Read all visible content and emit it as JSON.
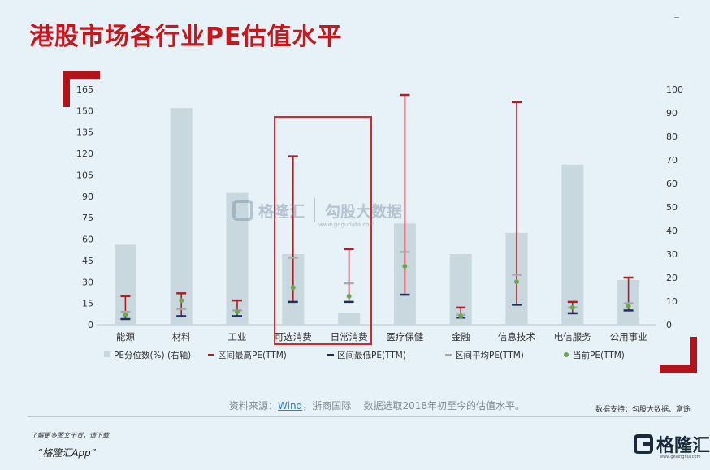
{
  "title": "港股市场各行业PE估值水平",
  "chart_data": {
    "type": "bar",
    "categories": [
      "能源",
      "材料",
      "工业",
      "可选消费",
      "日常消费",
      "医疗保健",
      "金融",
      "信息技术",
      "电信服务",
      "公用事业"
    ],
    "left_axis": {
      "ticks": [
        0,
        15,
        30,
        45,
        60,
        75,
        90,
        105,
        120,
        135,
        150,
        165
      ],
      "ylim": [
        0,
        165
      ]
    },
    "right_axis": {
      "ticks": [
        0,
        10,
        20,
        30,
        40,
        50,
        60,
        70,
        80,
        90,
        100
      ],
      "ylim": [
        0,
        100
      ]
    },
    "series": [
      {
        "name": "PE分位数(%) (右轴)",
        "kind": "bar",
        "axis": "right",
        "color": "#c9d7df",
        "values": [
          34,
          92,
          56,
          30,
          5,
          43,
          30,
          39,
          68,
          19
        ]
      },
      {
        "name": "区间最高PE(TTM)",
        "kind": "range_top",
        "axis": "left",
        "color": "#b01e24",
        "values": [
          20,
          22,
          17,
          118,
          53,
          161,
          12,
          156,
          16,
          33
        ]
      },
      {
        "name": "区间最低PE(TTM)",
        "kind": "range_bottom",
        "axis": "left",
        "color": "#1f2f5c",
        "values": [
          4,
          6,
          6,
          16,
          16,
          21,
          5,
          14,
          8,
          10
        ]
      },
      {
        "name": "区间平均PE(TTM)",
        "kind": "dash",
        "axis": "left",
        "color": "#a9a9a9",
        "values": [
          9,
          11,
          10,
          47,
          29,
          51,
          7,
          35,
          12,
          15
        ]
      },
      {
        "name": "当前PE(TTM)",
        "kind": "dot",
        "axis": "left",
        "color": "#6aa84f",
        "values": [
          7,
          17,
          9,
          26,
          20,
          41,
          6,
          30,
          12,
          13
        ]
      }
    ],
    "highlight_categories": [
      "可选消费",
      "日常消费"
    ]
  },
  "watermark": {
    "brand": "格隆汇",
    "partner": "勾股大数据",
    "url": "www.gogudata.com"
  },
  "source": {
    "prefix": "资料来源：",
    "wind": "Wind",
    "rest": "，浙商国际",
    "note": "数据选取2018年初至今的估值水平。"
  },
  "support": "数据支持：勾股大数据、富途",
  "footer": {
    "line1": "了解更多图文干货，请下载",
    "line2": "“格隆汇App”"
  },
  "logo": {
    "text": "格隆汇",
    "url": "www.gelonghui.com"
  }
}
